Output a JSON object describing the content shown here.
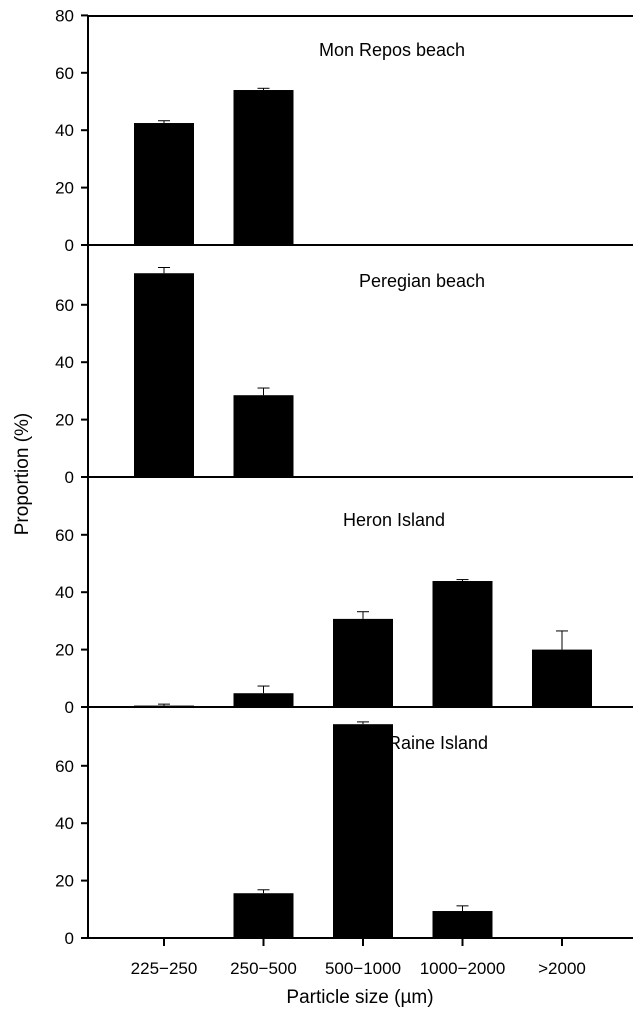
{
  "chart_data": {
    "type": "bar",
    "layout": "stacked-panels",
    "ylabel": "Proportion (%)",
    "xlabel": "Particle size (µm)",
    "categories": [
      "225−250",
      "250−500",
      "500−1000",
      "1000−2000",
      ">2000"
    ],
    "grid": false,
    "error_bars": true,
    "bar_color": "#000000",
    "panels": [
      {
        "title": "Mon Repos beach",
        "ylim": [
          0,
          80
        ],
        "yticks": [
          0,
          20,
          40,
          60,
          80
        ],
        "values": [
          42.5,
          54.0,
          0,
          0,
          0
        ],
        "errors": [
          0.8,
          0.6,
          0,
          0,
          0
        ]
      },
      {
        "title": "Peregian beach",
        "ylim": [
          0,
          78
        ],
        "yticks": [
          0,
          20,
          40,
          60
        ],
        "values": [
          71.0,
          28.5,
          0,
          0,
          0
        ],
        "errors": [
          2.0,
          2.5,
          0,
          0,
          0
        ]
      },
      {
        "title": "Heron Island",
        "ylim": [
          0,
          78
        ],
        "yticks": [
          0,
          20,
          40,
          60
        ],
        "values": [
          0.5,
          4.8,
          30.7,
          43.9,
          20.0
        ],
        "errors": [
          0.5,
          2.5,
          2.5,
          0.5,
          6.5
        ]
      },
      {
        "title": "Raine Island",
        "ylim": [
          0,
          78
        ],
        "yticks": [
          0,
          20,
          40,
          60
        ],
        "values": [
          0,
          15.6,
          74.5,
          9.4,
          0
        ],
        "errors": [
          0,
          1.2,
          0.8,
          1.8,
          0
        ]
      }
    ]
  }
}
